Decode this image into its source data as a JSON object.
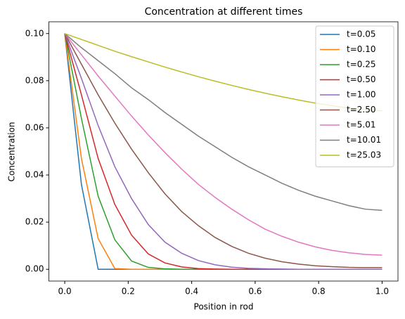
{
  "chart_data": {
    "type": "line",
    "title": "Concentration at different times",
    "x_label": "Position in rod",
    "y_label": "Concentration",
    "x": [
      0,
      0.0526,
      0.1053,
      0.1579,
      0.2105,
      0.2632,
      0.3158,
      0.3684,
      0.4211,
      0.4737,
      0.5263,
      0.5789,
      0.6316,
      0.6842,
      0.7368,
      0.7895,
      0.8421,
      0.8947,
      0.9474,
      1
    ],
    "series": [
      {
        "name": "t=0.05",
        "color": "#1f77b4",
        "values": [
          0.1,
          0.036,
          0,
          0,
          0,
          0,
          0,
          0,
          0,
          0,
          0,
          0,
          0,
          0,
          0,
          0,
          0,
          0,
          0,
          0
        ]
      },
      {
        "name": "t=0.10",
        "color": "#ff7f0e",
        "values": [
          0.1,
          0.047,
          0.013,
          0.0003,
          0,
          0,
          0,
          0,
          0,
          0,
          0,
          0,
          0,
          0,
          0,
          0,
          0,
          0,
          0,
          0
        ]
      },
      {
        "name": "t=0.25",
        "color": "#2ca02c",
        "values": [
          0.1,
          0.064,
          0.031,
          0.0125,
          0.0035,
          0.0008,
          0.0002,
          0,
          0,
          0,
          0,
          0,
          0,
          0,
          0,
          0,
          0,
          0,
          0,
          0
        ]
      },
      {
        "name": "t=0.50",
        "color": "#d62728",
        "values": [
          0.1,
          0.074,
          0.047,
          0.0275,
          0.0145,
          0.0065,
          0.0027,
          0.001,
          0.0003,
          0.0001,
          0,
          0,
          0,
          0,
          0,
          0,
          0,
          0,
          0,
          0
        ]
      },
      {
        "name": "t=1.00",
        "color": "#9467bd",
        "values": [
          0.1,
          0.081,
          0.061,
          0.0435,
          0.03,
          0.019,
          0.0115,
          0.0068,
          0.0037,
          0.0019,
          0.0009,
          0.0004,
          0.0002,
          0.0001,
          0,
          0,
          0,
          0,
          0,
          0
        ]
      },
      {
        "name": "t=2.50",
        "color": "#8c564b",
        "values": [
          0.1,
          0.087,
          0.074,
          0.062,
          0.051,
          0.041,
          0.032,
          0.0245,
          0.0185,
          0.0135,
          0.0097,
          0.0068,
          0.0047,
          0.0032,
          0.0022,
          0.0015,
          0.0011,
          0.0008,
          0.0007,
          0.0007
        ]
      },
      {
        "name": "t=5.01",
        "color": "#e377c2",
        "values": [
          0.1,
          0.091,
          0.082,
          0.0735,
          0.065,
          0.057,
          0.0495,
          0.0425,
          0.036,
          0.0305,
          0.0255,
          0.021,
          0.017,
          0.014,
          0.0115,
          0.0095,
          0.008,
          0.007,
          0.0063,
          0.006
        ]
      },
      {
        "name": "t=10.01",
        "color": "#7f7f7f",
        "values": [
          0.1,
          0.094,
          0.0885,
          0.083,
          0.077,
          0.072,
          0.0665,
          0.0615,
          0.0565,
          0.052,
          0.0475,
          0.0435,
          0.04,
          0.0365,
          0.0335,
          0.031,
          0.029,
          0.027,
          0.0255,
          0.025
        ]
      },
      {
        "name": "t=25.03",
        "color": "#bcbd22",
        "values": [
          0.1,
          0.0975,
          0.095,
          0.0925,
          0.0902,
          0.088,
          0.0858,
          0.0837,
          0.0817,
          0.0798,
          0.078,
          0.0763,
          0.0747,
          0.0732,
          0.0718,
          0.0705,
          0.0694,
          0.0684,
          0.0677,
          0.0672
        ]
      }
    ],
    "xlim": [
      -0.05,
      1.05
    ],
    "xticks": [
      {
        "value": 0,
        "label": "0.0"
      },
      {
        "value": 0.2,
        "label": "0.2"
      },
      {
        "value": 0.4,
        "label": "0.4"
      },
      {
        "value": 0.6,
        "label": "0.6"
      },
      {
        "value": 0.8,
        "label": "0.8"
      },
      {
        "value": 1,
        "label": "1.0"
      }
    ],
    "ylim": [
      -0.005,
      0.105
    ],
    "yticks": [
      {
        "value": 0,
        "label": "0.00"
      },
      {
        "value": 0.02,
        "label": "0.02"
      },
      {
        "value": 0.04,
        "label": "0.04"
      },
      {
        "value": 0.06,
        "label": "0.06"
      },
      {
        "value": 0.08,
        "label": "0.08"
      },
      {
        "value": 0.1,
        "label": "0.10"
      }
    ],
    "legend": "upper right",
    "grid": false
  }
}
